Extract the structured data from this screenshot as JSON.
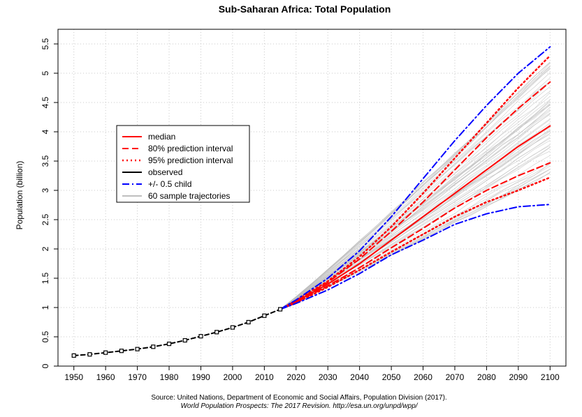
{
  "chart_data": {
    "type": "line",
    "title": "Sub-Saharan Africa: Total Population",
    "xlabel": "",
    "ylabel": "Population (billion)",
    "xlim": [
      1945,
      2105
    ],
    "ylim": [
      0,
      5.75
    ],
    "x_ticks": [
      1950,
      1960,
      1970,
      1980,
      1990,
      2000,
      2010,
      2020,
      2030,
      2040,
      2050,
      2060,
      2070,
      2080,
      2090,
      2100
    ],
    "y_ticks": [
      0,
      0.5,
      1,
      1.5,
      2,
      2.5,
      3,
      3.5,
      4,
      4.5,
      5,
      5.5
    ],
    "x_tick_labels": [
      "1950",
      "1960",
      "1970",
      "1980",
      "1990",
      "2000",
      "2010",
      "2020",
      "2030",
      "2040",
      "2050",
      "2060",
      "2070",
      "2080",
      "2090",
      "2100"
    ],
    "y_tick_labels": [
      "0",
      "0.5",
      "1",
      "1.5",
      "2",
      "2.5",
      "3",
      "3.5",
      "4",
      "4.5",
      "5",
      "5.5"
    ],
    "grid": true,
    "source_line1": "Source: United Nations, Department of Economic and Social Affairs, Population Division (2017).",
    "source_line2": "World Population Prospects: The 2017 Revision. http://esa.un.org/unpd/wpp/",
    "legend": {
      "position": "top-left",
      "entries": [
        {
          "label": "median",
          "color": "#ff0000",
          "style": "solid"
        },
        {
          "label": "80% prediction interval",
          "color": "#ff0000",
          "style": "dashed"
        },
        {
          "label": "95% prediction interval",
          "color": "#ff0000",
          "style": "dotted"
        },
        {
          "label": "observed",
          "color": "#000000",
          "style": "solid"
        },
        {
          "label": "+/- 0.5 child",
          "color": "#0000ff",
          "style": "dashdot"
        },
        {
          "label": "60 sample trajectories",
          "color": "#bebebe",
          "style": "solid"
        }
      ]
    },
    "series": [
      {
        "name": "observed",
        "color": "#000000",
        "style": "dashed-points",
        "x": [
          1950,
          1955,
          1960,
          1965,
          1970,
          1975,
          1980,
          1985,
          1990,
          1995,
          2000,
          2005,
          2010,
          2015
        ],
        "y": [
          0.18,
          0.2,
          0.23,
          0.26,
          0.29,
          0.33,
          0.38,
          0.44,
          0.51,
          0.58,
          0.66,
          0.75,
          0.86,
          0.97
        ]
      },
      {
        "name": "median",
        "color": "#ff0000",
        "style": "solid",
        "x": [
          2015,
          2020,
          2030,
          2040,
          2050,
          2060,
          2070,
          2080,
          2090,
          2100
        ],
        "y": [
          0.97,
          1.1,
          1.4,
          1.75,
          2.15,
          2.55,
          2.95,
          3.35,
          3.75,
          4.1
        ]
      },
      {
        "name": "80% upper",
        "color": "#ff0000",
        "style": "dashed",
        "x": [
          2015,
          2020,
          2030,
          2040,
          2050,
          2060,
          2070,
          2080,
          2090,
          2100
        ],
        "y": [
          0.97,
          1.11,
          1.43,
          1.83,
          2.3,
          2.8,
          3.35,
          3.9,
          4.4,
          4.85
        ]
      },
      {
        "name": "80% lower",
        "color": "#ff0000",
        "style": "dashed",
        "x": [
          2015,
          2020,
          2030,
          2040,
          2050,
          2060,
          2070,
          2080,
          2090,
          2100
        ],
        "y": [
          0.97,
          1.09,
          1.37,
          1.68,
          2.02,
          2.35,
          2.7,
          3.0,
          3.25,
          3.47
        ]
      },
      {
        "name": "95% upper",
        "color": "#ff0000",
        "style": "dotted",
        "x": [
          2015,
          2020,
          2030,
          2040,
          2050,
          2060,
          2070,
          2080,
          2090,
          2100
        ],
        "y": [
          0.97,
          1.12,
          1.45,
          1.87,
          2.38,
          2.95,
          3.55,
          4.15,
          4.75,
          5.3
        ]
      },
      {
        "name": "95% lower",
        "color": "#ff0000",
        "style": "dotted",
        "x": [
          2015,
          2020,
          2030,
          2040,
          2050,
          2060,
          2070,
          2080,
          2090,
          2100
        ],
        "y": [
          0.97,
          1.08,
          1.35,
          1.64,
          1.95,
          2.25,
          2.55,
          2.8,
          3.0,
          3.22
        ]
      },
      {
        "name": "+0.5 child",
        "color": "#0000ff",
        "style": "dashdot",
        "x": [
          2015,
          2020,
          2030,
          2040,
          2050,
          2060,
          2070,
          2080,
          2090,
          2100
        ],
        "y": [
          0.97,
          1.13,
          1.5,
          1.97,
          2.55,
          3.2,
          3.85,
          4.45,
          5.0,
          5.45
        ]
      },
      {
        "name": "-0.5 child",
        "color": "#0000ff",
        "style": "dashdot",
        "x": [
          2015,
          2020,
          2030,
          2040,
          2050,
          2060,
          2070,
          2080,
          2090,
          2100
        ],
        "y": [
          0.97,
          1.07,
          1.3,
          1.58,
          1.9,
          2.15,
          2.42,
          2.6,
          2.72,
          2.76
        ]
      }
    ],
    "sample_trajectories": {
      "count": 60,
      "color": "#bebebe",
      "start_year": 2015,
      "end_year": 2100,
      "start_value": 0.97,
      "end_range": [
        3.3,
        5.3
      ]
    }
  }
}
